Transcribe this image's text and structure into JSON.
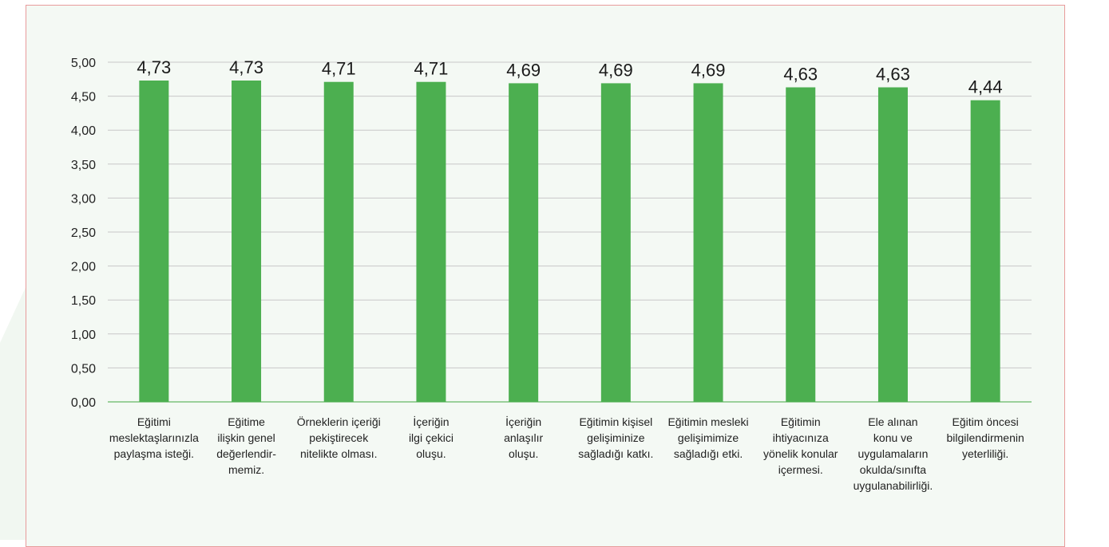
{
  "colors": {
    "bar": "#4caf50",
    "grid": "#c8c8c8",
    "axis": "#7cc27c",
    "panel_border": "#e89b9b",
    "panel_bg": "#f4f9f4"
  },
  "chart_data": {
    "type": "bar",
    "title": "",
    "xlabel": "",
    "ylabel": "",
    "ylim": [
      0,
      5
    ],
    "ytick_step": 0.5,
    "y_ticks": [
      "0,00",
      "0,50",
      "1,00",
      "1,50",
      "2,00",
      "2,50",
      "3,00",
      "3,50",
      "4,00",
      "4,50",
      "5,00"
    ],
    "grid": true,
    "categories": [
      [
        "Eğitimi",
        "meslektaşlarınızla",
        "paylaşma isteği."
      ],
      [
        "Eğitime",
        "ilişkin genel",
        "değerlendir-",
        "memiz."
      ],
      [
        "Örneklerin içeriği",
        "pekiştirecek",
        "nitelikte olması."
      ],
      [
        "İçeriğin",
        "ilgi çekici",
        "oluşu."
      ],
      [
        "İçeriğin",
        "anlaşılır",
        "oluşu."
      ],
      [
        "Eğitimin kişisel",
        "gelişiminize",
        "sağladığı katkı."
      ],
      [
        "Eğitimin mesleki",
        "gelişimimize",
        "sağladığı etki."
      ],
      [
        "Eğitimin",
        "ihtiyacınıza",
        "yönelik konular",
        "içermesi."
      ],
      [
        "Ele alınan",
        "konu ve",
        "uygulamaların",
        "okulda/sınıfta",
        "uygulanabilirliği."
      ],
      [
        "Eğitim öncesi",
        "bilgilendirmenin",
        "yeterliliği."
      ]
    ],
    "values": [
      4.73,
      4.73,
      4.71,
      4.71,
      4.69,
      4.69,
      4.69,
      4.63,
      4.63,
      4.44
    ],
    "value_labels": [
      "4,73",
      "4,73",
      "4,71",
      "4,71",
      "4,69",
      "4,69",
      "4,69",
      "4,63",
      "4,63",
      "4,44"
    ]
  }
}
